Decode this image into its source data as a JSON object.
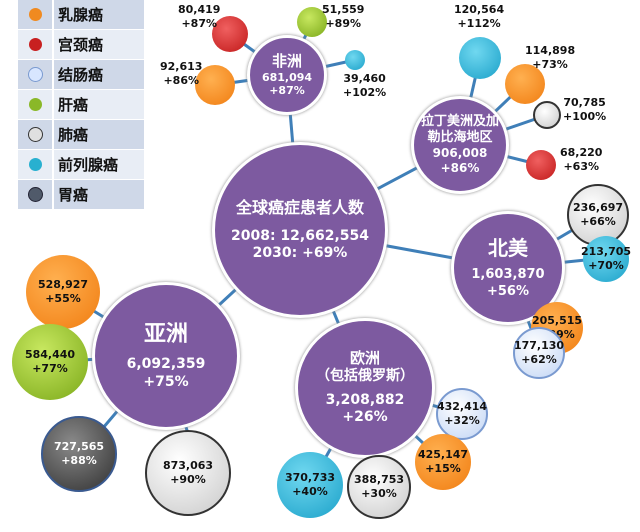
{
  "legend": [
    {
      "label": "乳腺癌",
      "color": "#f08a20"
    },
    {
      "label": "宫颈癌",
      "color": "#c82020"
    },
    {
      "label": "结肠癌",
      "color": "#d8e6ff"
    },
    {
      "label": "肝癌",
      "color": "#8ab828"
    },
    {
      "label": "肺癌",
      "color": "#e0e0e0"
    },
    {
      "label": "前列腺癌",
      "color": "#28b0d0"
    },
    {
      "label": "胃癌",
      "color": "#505a6a"
    }
  ],
  "global": {
    "title": "全球癌症患者人数",
    "line1": "2008: 12,662,554",
    "line2": "2030:  +69%"
  },
  "africa": {
    "name": "非洲",
    "value": "681,094",
    "growth": "+87%",
    "cervical": {
      "value": "80,419",
      "growth": "+87%"
    },
    "liver": {
      "value": "51,559",
      "growth": "+89%"
    },
    "prostate": {
      "value": "39,460",
      "growth": "+102%"
    },
    "breast": {
      "value": "92,613",
      "growth": "+86%"
    }
  },
  "latam": {
    "name": "拉丁美洲及加勒比海地区",
    "value": "906,008",
    "growth": "+86%",
    "prostate": {
      "value": "120,564",
      "growth": "+112%"
    },
    "breast": {
      "value": "114,898",
      "growth": "+73%"
    },
    "lung": {
      "value": "70,785",
      "growth": "+100%"
    },
    "cervical": {
      "value": "68,220",
      "growth": "+63%"
    }
  },
  "namerica": {
    "name": "北美",
    "value": "1,603,870",
    "growth": "+56%",
    "lung": {
      "value": "236,697",
      "growth": "+66%"
    },
    "prostate": {
      "value": "213,705",
      "growth": "+70%"
    },
    "breast": {
      "value": "205,515",
      "growth": "+39%"
    },
    "colon": {
      "value": "177,130",
      "growth": "+62%"
    }
  },
  "europe": {
    "name": "欧洲",
    "sub": "（包括俄罗斯）",
    "value": "3,208,882",
    "growth": "+26%",
    "colon": {
      "value": "432,414",
      "growth": "+32%"
    },
    "breast": {
      "value": "425,147",
      "growth": "+15%"
    },
    "lung": {
      "value": "388,753",
      "growth": "+30%"
    },
    "prostate": {
      "value": "370,733",
      "growth": "+40%"
    }
  },
  "asia": {
    "name": "亚洲",
    "value": "6,092,359",
    "growth": "+75%",
    "breast": {
      "value": "528,927",
      "growth": "+55%"
    },
    "liver": {
      "value": "584,440",
      "growth": "+77%"
    },
    "stomach": {
      "value": "727,565",
      "growth": "+88%"
    },
    "lung": {
      "value": "873,063",
      "growth": "+90%"
    }
  }
}
